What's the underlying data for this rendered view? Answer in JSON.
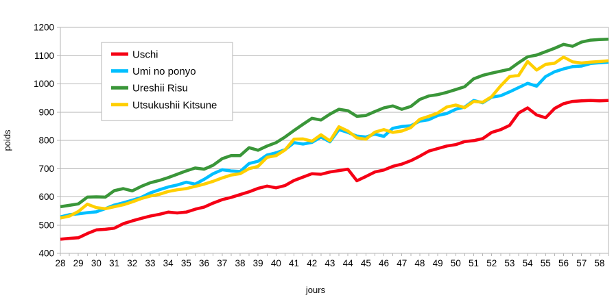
{
  "chart_data": {
    "type": "line",
    "title": "",
    "xlabel": "jours",
    "ylabel": "poids",
    "ylim": [
      400,
      1200
    ],
    "ytick_step": 100,
    "xtick_label_start": 28,
    "xtick_label_end": 58,
    "grid": "horizontal",
    "legend_position": "top-left-inside",
    "x": [
      28,
      28.5,
      29,
      29.5,
      30,
      30.5,
      31,
      31.5,
      32,
      32.5,
      33,
      33.5,
      34,
      34.5,
      35,
      35.5,
      36,
      36.5,
      37,
      37.5,
      38,
      38.5,
      39,
      39.5,
      40,
      40.5,
      41,
      41.5,
      42,
      42.5,
      43,
      43.5,
      44,
      44.5,
      45,
      45.5,
      46,
      46.5,
      47,
      47.5,
      48,
      48.5,
      49,
      49.5,
      50,
      50.5,
      51,
      51.5,
      52,
      52.5,
      53,
      53.5,
      54,
      54.5,
      55,
      55.5,
      56,
      56.5,
      57,
      57.5,
      58,
      58.5
    ],
    "series": [
      {
        "name": "Uschi",
        "color": "#f50015",
        "values": [
          450,
          453,
          455,
          470,
          483,
          485,
          489,
          505,
          515,
          524,
          532,
          538,
          546,
          543,
          546,
          556,
          564,
          578,
          590,
          598,
          608,
          618,
          630,
          638,
          632,
          640,
          658,
          670,
          682,
          680,
          688,
          693,
          698,
          657,
          672,
          688,
          695,
          708,
          716,
          728,
          744,
          762,
          771,
          780,
          785,
          796,
          799,
          806,
          828,
          838,
          853,
          897,
          915,
          890,
          880,
          913,
          930,
          938,
          940,
          941,
          940,
          941
        ]
      },
      {
        "name": "Umi no ponyo",
        "color": "#00bfff",
        "values": [
          529,
          537,
          540,
          544,
          547,
          558,
          571,
          579,
          588,
          598,
          614,
          625,
          635,
          642,
          652,
          645,
          662,
          682,
          696,
          692,
          690,
          718,
          726,
          748,
          756,
          767,
          792,
          787,
          793,
          812,
          795,
          838,
          828,
          815,
          812,
          822,
          814,
          843,
          849,
          852,
          868,
          873,
          888,
          895,
          910,
          918,
          941,
          933,
          953,
          958,
          972,
          987,
          1002,
          992,
          1026,
          1043,
          1053,
          1061,
          1063,
          1072,
          1075,
          1077
        ]
      },
      {
        "name": "Ureshii Risu",
        "color": "#3a9639",
        "values": [
          565,
          570,
          575,
          599,
          600,
          599,
          622,
          629,
          621,
          637,
          650,
          658,
          668,
          680,
          692,
          702,
          698,
          712,
          735,
          746,
          746,
          774,
          765,
          780,
          792,
          812,
          835,
          857,
          878,
          872,
          893,
          910,
          905,
          885,
          888,
          902,
          915,
          922,
          910,
          920,
          945,
          957,
          962,
          970,
          980,
          990,
          1018,
          1030,
          1038,
          1045,
          1052,
          1075,
          1096,
          1102,
          1114,
          1126,
          1140,
          1133,
          1148,
          1155,
          1157,
          1158
        ]
      },
      {
        "name": "Utsukushii Kitsune",
        "color": "#ffcf00",
        "values": [
          525,
          532,
          548,
          574,
          562,
          558,
          565,
          572,
          582,
          594,
          603,
          609,
          619,
          625,
          629,
          637,
          645,
          655,
          667,
          677,
          682,
          700,
          708,
          740,
          746,
          766,
          804,
          805,
          797,
          820,
          798,
          848,
          833,
          809,
          804,
          829,
          838,
          828,
          833,
          845,
          875,
          885,
          897,
          918,
          925,
          916,
          938,
          935,
          955,
          993,
          1026,
          1030,
          1079,
          1049,
          1069,
          1073,
          1095,
          1078,
          1074,
          1077,
          1079,
          1082
        ]
      }
    ]
  },
  "colors": {
    "grid": "#b6b6b6",
    "plot_border": "#b6b6b6",
    "axis_text": "#000000",
    "background": "#ffffff",
    "legend_border": "#b6b6b6",
    "legend_background": "#ffffff"
  }
}
